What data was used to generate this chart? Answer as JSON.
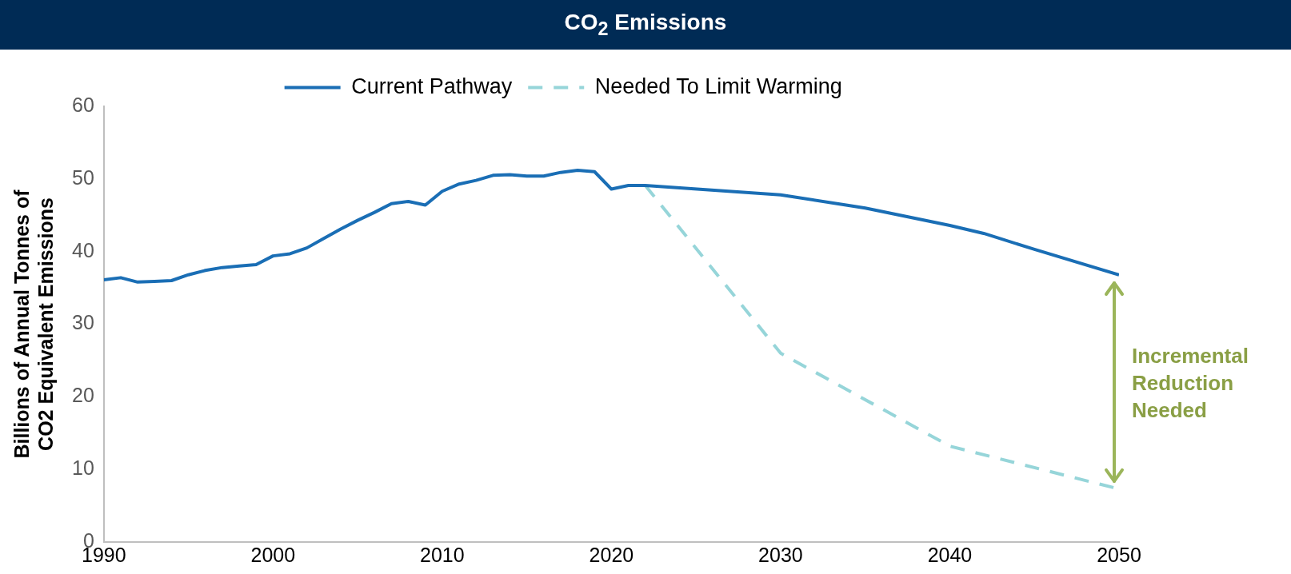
{
  "chart_data": {
    "type": "line",
    "title": "CO$_{2}$ Emissions",
    "ylabel": "Billions of Annual Tonnes of\nCO2 Equivalent Emissions",
    "legend": "top",
    "grid": false,
    "marker": "none",
    "xlim": [
      1990,
      2050
    ],
    "xticks": [
      1990,
      2000,
      2010,
      2020,
      2030,
      2040,
      2050
    ],
    "ylim": [
      0,
      60
    ],
    "yticks": [
      0,
      10,
      20,
      30,
      40,
      50,
      60
    ],
    "annotations": [
      "Incremental Reduction Needed"
    ],
    "series": [
      {
        "name": "Current Pathway",
        "color": "#1a6eb5",
        "line_style": "solid",
        "x": [
          1990,
          1991,
          1992,
          1993,
          1994,
          1995,
          1996,
          1997,
          1998,
          1999,
          2000,
          2001,
          2002,
          2003,
          2004,
          2005,
          2006,
          2007,
          2008,
          2009,
          2010,
          2011,
          2012,
          2013,
          2014,
          2015,
          2016,
          2017,
          2018,
          2019,
          2020,
          2021,
          2022,
          2030,
          2035,
          2040,
          2042,
          2045,
          2050
        ],
        "values": [
          36.1,
          36.4,
          35.8,
          35.9,
          36.0,
          36.8,
          37.4,
          37.8,
          38.0,
          38.2,
          39.4,
          39.7,
          40.5,
          41.8,
          43.1,
          44.3,
          45.4,
          46.6,
          46.9,
          46.4,
          48.3,
          49.3,
          49.8,
          50.5,
          50.6,
          50.4,
          50.4,
          50.9,
          51.2,
          51.0,
          48.6,
          49.1,
          49.1,
          47.8,
          46.0,
          43.6,
          42.5,
          40.3,
          36.8
        ]
      },
      {
        "name": "Needed To Limit Warming",
        "color": "#96d5d9",
        "line_style": "dashed",
        "x": [
          2022,
          2030,
          2040,
          2050
        ],
        "values": [
          49.1,
          26.0,
          13.2,
          7.3
        ]
      }
    ]
  }
}
